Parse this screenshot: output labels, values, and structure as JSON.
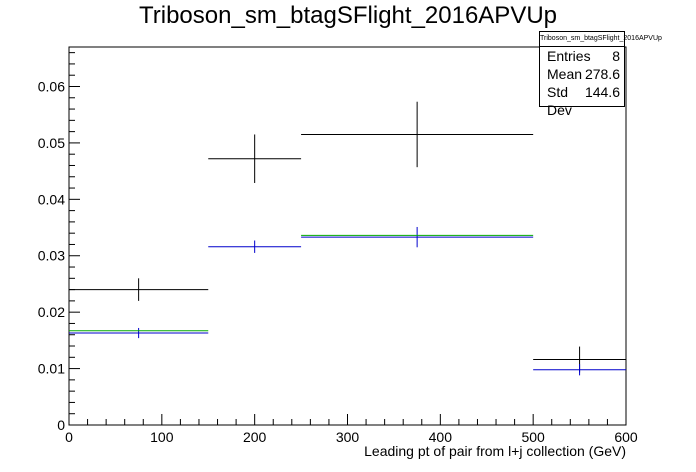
{
  "chart_data": {
    "type": "scatter",
    "title": "Triboson_sm_btagSFlight_2016APVUp",
    "xlabel": "Leading pt of pair from l+j collection (GeV)",
    "ylabel": "",
    "xlim": [
      0,
      600
    ],
    "ylim": [
      0,
      0.067
    ],
    "xticks": [
      0,
      100,
      200,
      300,
      400,
      500,
      600
    ],
    "yticks": [
      0,
      0.01,
      0.02,
      0.03,
      0.04,
      0.05,
      0.06
    ],
    "xtick_labels": [
      "0",
      "100",
      "200",
      "300",
      "400",
      "500",
      "600"
    ],
    "ytick_labels": [
      "0",
      "0.01",
      "0.02",
      "0.03",
      "0.04",
      "0.05",
      "0.06"
    ],
    "grid": false,
    "series": [
      {
        "color": "#000000",
        "bins": [
          {
            "xlow": 0,
            "xhigh": 150,
            "y": 0.024,
            "yerr": 0.002
          },
          {
            "xlow": 150,
            "xhigh": 250,
            "y": 0.0472,
            "yerr": 0.0043
          },
          {
            "xlow": 250,
            "xhigh": 500,
            "y": 0.0515,
            "yerr": 0.0058
          },
          {
            "xlow": 500,
            "xhigh": 600,
            "y": 0.0116,
            "yerr": 0.0023
          }
        ]
      },
      {
        "color": "#0000cc",
        "bins": [
          {
            "xlow": 0,
            "xhigh": 150,
            "y": 0.0163,
            "yerr": 0.0009
          },
          {
            "xlow": 150,
            "xhigh": 250,
            "y": 0.0316,
            "yerr": 0.0011
          },
          {
            "xlow": 250,
            "xhigh": 500,
            "y": 0.0333,
            "yerr": 0.0018
          },
          {
            "xlow": 500,
            "xhigh": 600,
            "y": 0.0098,
            "yerr": 0.001
          }
        ]
      },
      {
        "color": "#00aa00",
        "bins": [
          {
            "xlow": 0,
            "xhigh": 150,
            "y": 0.0167,
            "yerr": 0
          },
          {
            "xlow": 250,
            "xhigh": 500,
            "y": 0.0336,
            "yerr": 0
          }
        ]
      }
    ],
    "stats": {
      "name": "Triboson_sm_btagSFlight_2016APVUp",
      "rows": [
        {
          "label": "Entries",
          "value": "8"
        },
        {
          "label": "Mean",
          "value": "278.6"
        },
        {
          "label": "Std Dev",
          "value": "144.6"
        }
      ]
    }
  }
}
